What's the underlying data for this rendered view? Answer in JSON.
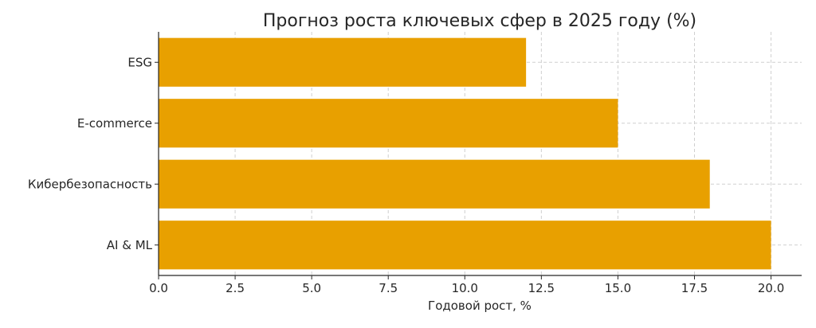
{
  "chart_data": {
    "type": "bar",
    "orientation": "horizontal",
    "title": "Прогноз роста ключевых сфер в 2025 году (%)",
    "xlabel": "Годовой рост, %",
    "ylabel": "",
    "categories": [
      "ESG",
      "E-commerce",
      "Кибербезопасность",
      "AI & ML"
    ],
    "values": [
      12,
      15,
      18,
      20
    ],
    "xlim": [
      0,
      21
    ],
    "xticks": [
      0,
      2.5,
      5,
      7.5,
      10,
      12.5,
      15,
      17.5,
      20
    ],
    "xtick_labels": [
      "0.0",
      "2.5",
      "5.0",
      "7.5",
      "10.0",
      "12.5",
      "15.0",
      "17.5",
      "20.0"
    ],
    "grid": true,
    "bar_color": "#E8A000"
  }
}
